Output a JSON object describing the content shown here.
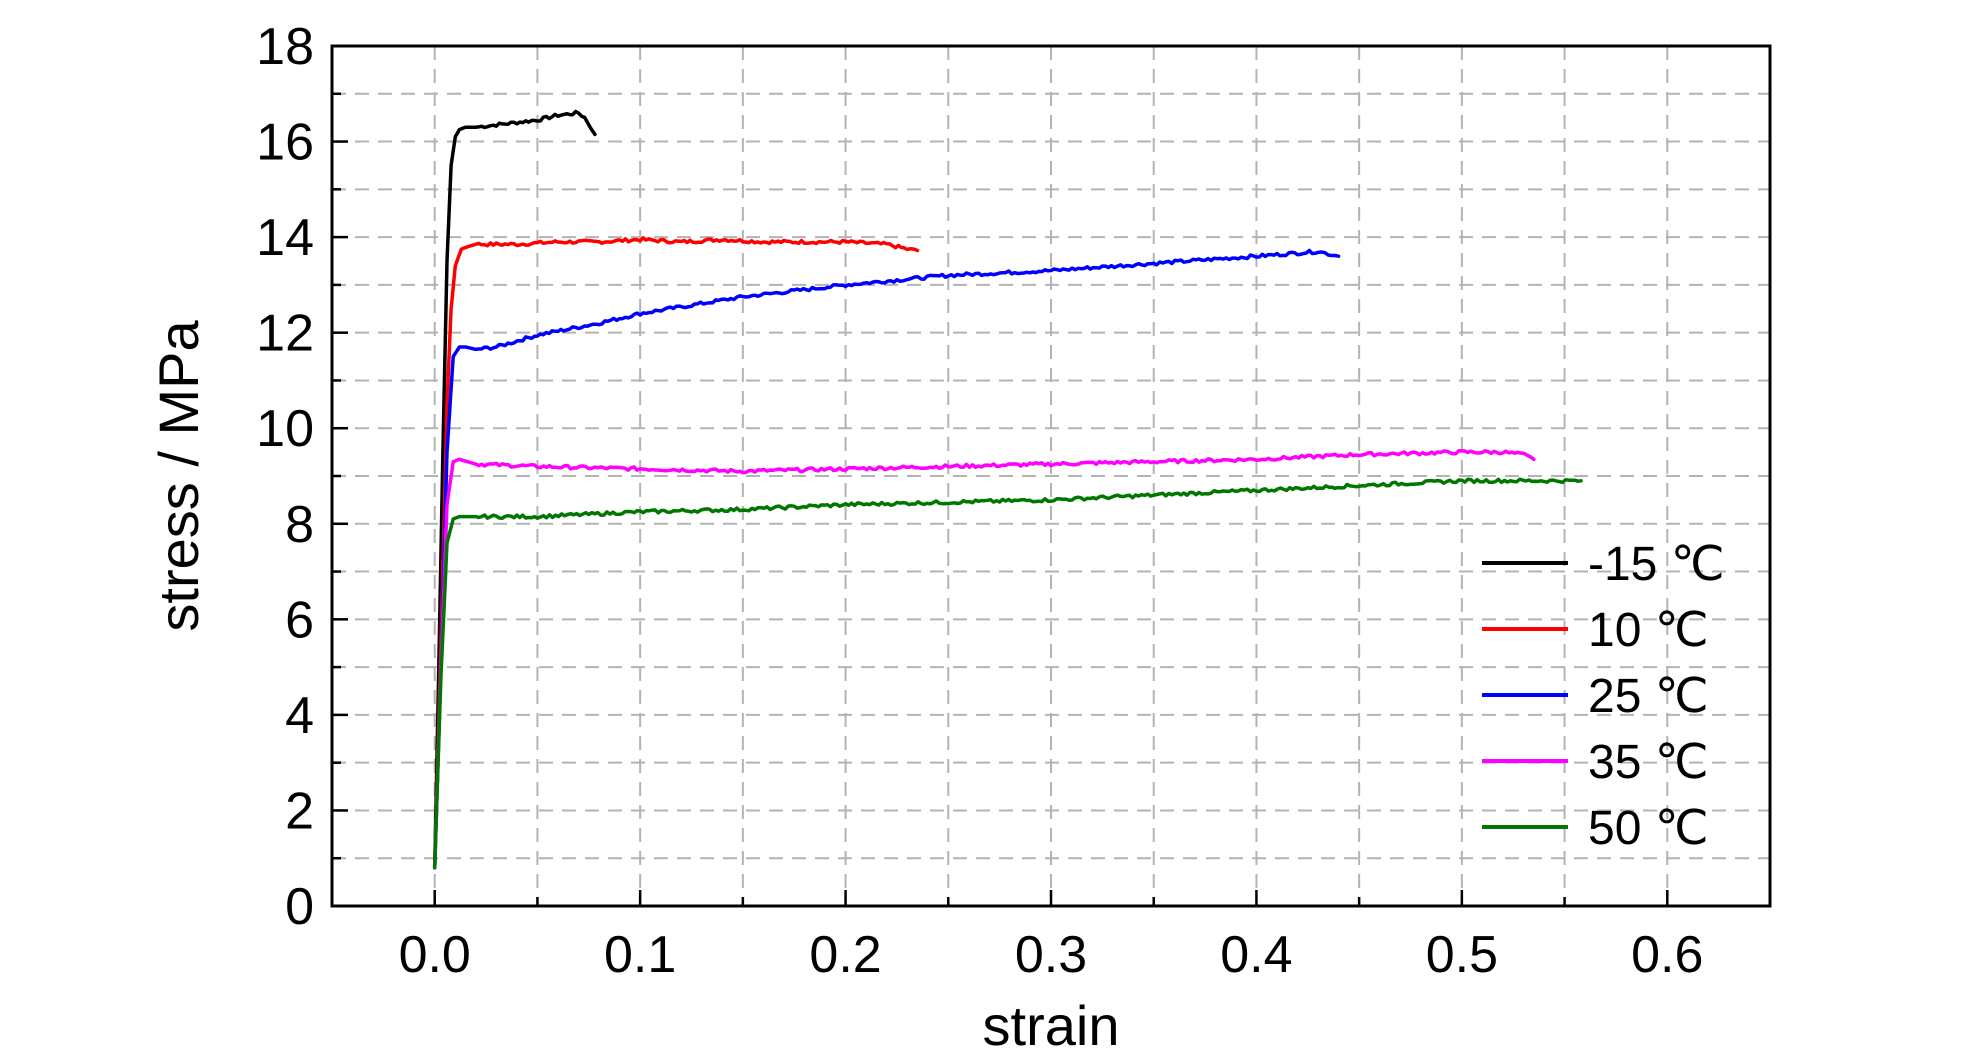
{
  "chart_data": {
    "type": "line",
    "xlabel": "strain",
    "ylabel": "stress / MPa",
    "xlim": [
      -0.05,
      0.65
    ],
    "ylim": [
      0,
      18
    ],
    "xticks": [
      0.0,
      0.1,
      0.2,
      0.3,
      0.4,
      0.5,
      0.6
    ],
    "xtick_labels": [
      "0.0",
      "0.1",
      "0.2",
      "0.3",
      "0.4",
      "0.5",
      "0.6"
    ],
    "yticks": [
      0,
      2,
      4,
      6,
      8,
      10,
      12,
      14,
      16,
      18
    ],
    "ytick_labels": [
      "0",
      "2",
      "4",
      "6",
      "8",
      "10",
      "12",
      "14",
      "16",
      "18"
    ],
    "grid": true,
    "legend_position": "lower-right",
    "series": [
      {
        "name": "-15 ℃",
        "color": "#000000",
        "x": [
          0.0,
          0.002,
          0.004,
          0.006,
          0.008,
          0.01,
          0.012,
          0.015,
          0.02,
          0.03,
          0.04,
          0.05,
          0.06,
          0.07,
          0.073,
          0.076,
          0.078
        ],
        "y": [
          0.8,
          5.0,
          9.5,
          13.5,
          15.5,
          16.1,
          16.25,
          16.3,
          16.3,
          16.35,
          16.4,
          16.45,
          16.55,
          16.6,
          16.5,
          16.3,
          16.15
        ]
      },
      {
        "name": "10 ℃",
        "color": "#ff0000",
        "x": [
          0.0,
          0.003,
          0.006,
          0.008,
          0.01,
          0.013,
          0.016,
          0.02,
          0.04,
          0.06,
          0.08,
          0.1,
          0.12,
          0.14,
          0.16,
          0.18,
          0.2,
          0.22,
          0.23,
          0.235
        ],
        "y": [
          0.8,
          5.5,
          10.5,
          12.5,
          13.4,
          13.75,
          13.8,
          13.85,
          13.85,
          13.9,
          13.9,
          13.95,
          13.9,
          13.95,
          13.9,
          13.9,
          13.9,
          13.85,
          13.75,
          13.72
        ]
      },
      {
        "name": "25 ℃",
        "color": "#0000ff",
        "x": [
          0.0,
          0.003,
          0.006,
          0.009,
          0.012,
          0.015,
          0.02,
          0.03,
          0.05,
          0.08,
          0.1,
          0.15,
          0.2,
          0.25,
          0.3,
          0.35,
          0.4,
          0.43,
          0.435,
          0.44
        ],
        "y": [
          0.8,
          5.0,
          9.5,
          11.5,
          11.7,
          11.7,
          11.65,
          11.7,
          11.95,
          12.2,
          12.4,
          12.75,
          13.0,
          13.2,
          13.3,
          13.45,
          13.6,
          13.7,
          13.65,
          13.6
        ]
      },
      {
        "name": "35 ℃",
        "color": "#ff00ff",
        "x": [
          0.0,
          0.003,
          0.006,
          0.009,
          0.012,
          0.016,
          0.02,
          0.05,
          0.1,
          0.15,
          0.2,
          0.25,
          0.3,
          0.35,
          0.4,
          0.45,
          0.5,
          0.52,
          0.53,
          0.535
        ],
        "y": [
          0.8,
          5.0,
          8.4,
          9.3,
          9.35,
          9.3,
          9.25,
          9.2,
          9.15,
          9.1,
          9.15,
          9.2,
          9.25,
          9.3,
          9.35,
          9.45,
          9.5,
          9.5,
          9.45,
          9.35
        ]
      },
      {
        "name": "50 ℃",
        "color": "#007700",
        "x": [
          0.0,
          0.003,
          0.006,
          0.009,
          0.012,
          0.016,
          0.02,
          0.05,
          0.1,
          0.15,
          0.2,
          0.25,
          0.3,
          0.35,
          0.4,
          0.45,
          0.5,
          0.54,
          0.558
        ],
        "y": [
          0.8,
          4.8,
          7.6,
          8.1,
          8.15,
          8.15,
          8.15,
          8.15,
          8.25,
          8.3,
          8.4,
          8.45,
          8.5,
          8.6,
          8.7,
          8.8,
          8.9,
          8.9,
          8.9
        ]
      }
    ]
  }
}
